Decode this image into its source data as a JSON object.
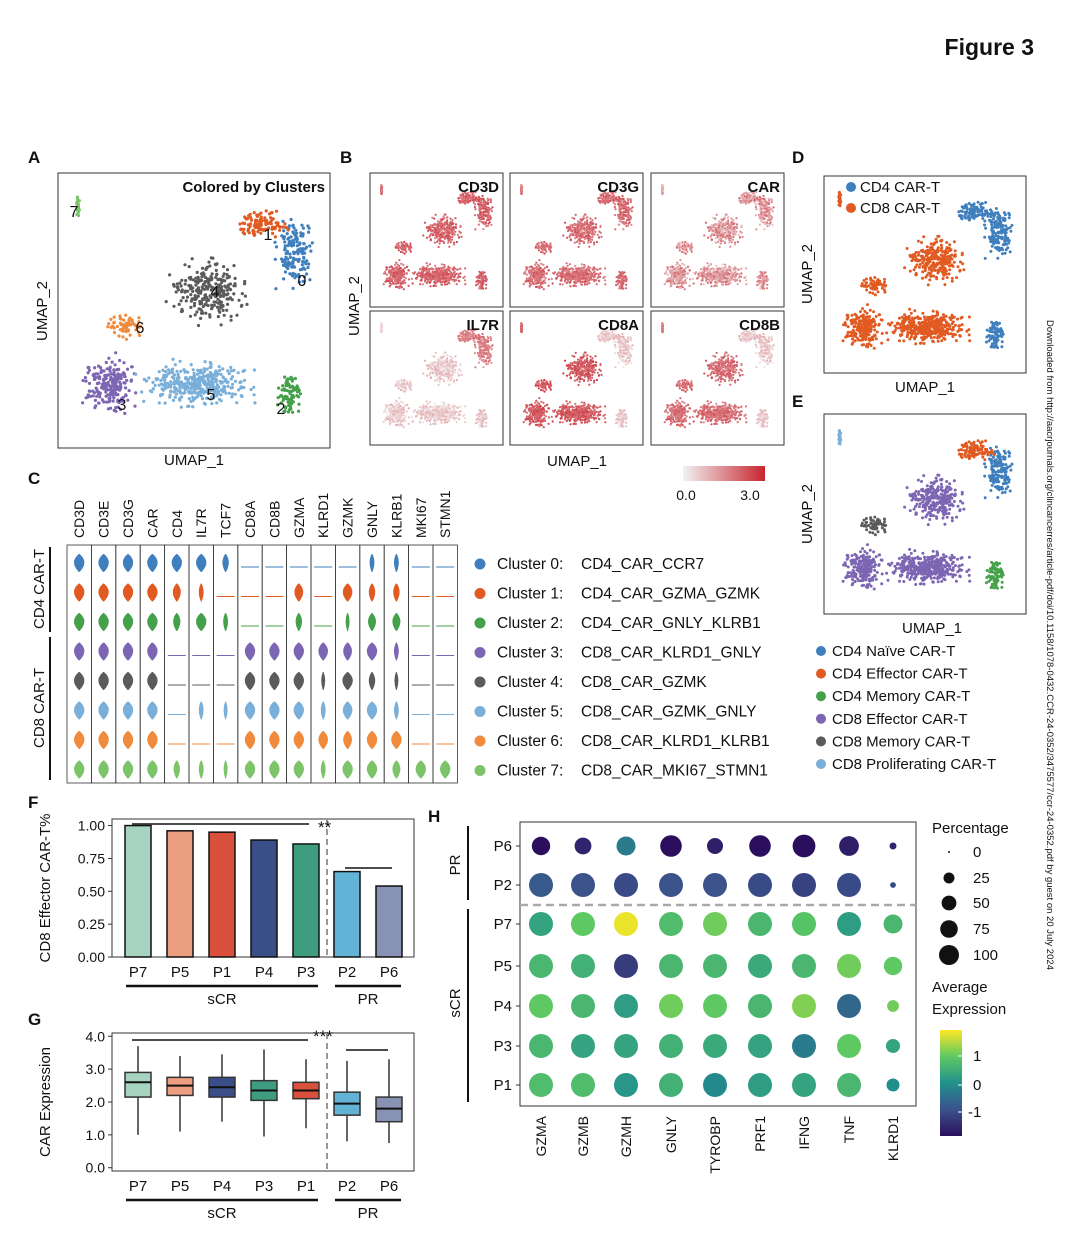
{
  "figure_title": "Figure 3",
  "side_note": "Downloaded from http://aacrjournals.org/clincancerres/article-pdf/doi/10.1158/1078-0432.CCR-24-0352/3475577/ccr-24-0352.pdf by guest on 20 July 2024",
  "colors": {
    "c0": "#3f7fbd",
    "c1": "#e05a22",
    "c2": "#45a04a",
    "c3": "#7c66b3",
    "c4": "#5b5b5b",
    "c5": "#79afd9",
    "c6": "#f08a3c",
    "c7": "#7cc36a",
    "red": "#c8252f"
  },
  "panels": {
    "A": {
      "letter": "A",
      "title": "Colored by Clusters",
      "xlabel": "UMAP_1",
      "ylabel": "UMAP_2",
      "cluster_labels": [
        "0",
        "1",
        "2",
        "3",
        "4",
        "5",
        "6",
        "7"
      ]
    },
    "B": {
      "letter": "B",
      "genes": [
        "CD3D",
        "CD3G",
        "CAR",
        "IL7R",
        "CD8A",
        "CD8B"
      ],
      "xlabel": "UMAP_1",
      "ylabel": "UMAP_2",
      "scale_min": "0.0",
      "scale_max": "3.0"
    },
    "C": {
      "letter": "C",
      "genes": [
        "CD3D",
        "CD3E",
        "CD3G",
        "CAR",
        "CD4",
        "IL7R",
        "TCF7",
        "CD8A",
        "CD8B",
        "GZMA",
        "KLRD1",
        "GZMK",
        "GNLY",
        "KLRB1",
        "MKI67",
        "STMN1"
      ],
      "group_cd4": "CD4 CAR-T",
      "group_cd8": "CD8 CAR-T",
      "legend": [
        {
          "id": "Cluster 0:",
          "name": "CD4_CAR_CCR7"
        },
        {
          "id": "Cluster 1:",
          "name": "CD4_CAR_GZMA_GZMK"
        },
        {
          "id": "Cluster 2:",
          "name": "CD4_CAR_GNLY_KLRB1"
        },
        {
          "id": "Cluster 3:",
          "name": "CD8_CAR_KLRD1_GNLY"
        },
        {
          "id": "Cluster 4:",
          "name": "CD8_CAR_GZMK"
        },
        {
          "id": "Cluster 5:",
          "name": "CD8_CAR_GZMK_GNLY"
        },
        {
          "id": "Cluster 6:",
          "name": "CD8_CAR_KLRD1_KLRB1"
        },
        {
          "id": "Cluster 7:",
          "name": "CD8_CAR_MKI67_STMN1"
        }
      ]
    },
    "D": {
      "letter": "D",
      "legend": [
        "CD4 CAR-T",
        "CD8 CAR-T"
      ],
      "xlabel": "UMAP_1",
      "ylabel": "UMAP_2"
    },
    "E": {
      "letter": "E",
      "xlabel": "UMAP_1",
      "ylabel": "UMAP_2",
      "legend": [
        "CD4 Naïve CAR-T",
        "CD4 Effector CAR-T",
        "CD4 Memory CAR-T",
        "CD8 Effector CAR-T",
        "CD8 Memory CAR-T",
        "CD8 Proliferating CAR-T"
      ]
    },
    "F": {
      "letter": "F",
      "group_scr": "sCR",
      "group_pr": "PR",
      "sig1": "**"
    },
    "G": {
      "letter": "G",
      "group_scr": "sCR",
      "group_pr": "PR",
      "sig1": "***"
    },
    "H": {
      "letter": "H",
      "group_pr": "PR",
      "group_scr": "sCR",
      "size_title": "Percentage",
      "color_title_1": "Average",
      "color_title_2": "Expression",
      "size_levels": [
        "0",
        "25",
        "50",
        "75",
        "100"
      ],
      "color_ticks": [
        "1",
        "0",
        "-1"
      ]
    }
  },
  "chart_data": [
    {
      "panel": "F",
      "type": "bar",
      "ylabel": "CD8 Effector CAR-T%",
      "categories": [
        "P7",
        "P5",
        "P1",
        "P4",
        "P3",
        "P2",
        "P6"
      ],
      "values": [
        1.0,
        0.96,
        0.95,
        0.89,
        0.86,
        0.65,
        0.54
      ],
      "colors": [
        "#a6d4c1",
        "#ec9e80",
        "#d9513c",
        "#3a4f87",
        "#3e9c7f",
        "#63b3d6",
        "#8892b5"
      ],
      "yticks": [
        "0.00",
        "0.25",
        "0.50",
        "0.75",
        "1.00"
      ],
      "ylim": [
        0,
        1.05
      ]
    },
    {
      "panel": "G",
      "type": "box",
      "ylabel": "CAR Expression",
      "categories": [
        "P7",
        "P5",
        "P4",
        "P3",
        "P1",
        "P2",
        "P6"
      ],
      "boxes": [
        {
          "min": 1.0,
          "q1": 2.15,
          "median": 2.6,
          "q3": 2.9,
          "max": 3.7
        },
        {
          "min": 1.1,
          "q1": 2.2,
          "median": 2.5,
          "q3": 2.75,
          "max": 3.4
        },
        {
          "min": 1.4,
          "q1": 2.15,
          "median": 2.45,
          "q3": 2.75,
          "max": 3.45
        },
        {
          "min": 0.95,
          "q1": 2.05,
          "median": 2.35,
          "q3": 2.65,
          "max": 3.6
        },
        {
          "min": 1.2,
          "q1": 2.1,
          "median": 2.35,
          "q3": 2.6,
          "max": 3.3
        },
        {
          "min": 0.8,
          "q1": 1.6,
          "median": 1.95,
          "q3": 2.3,
          "max": 3.25
        },
        {
          "min": 0.75,
          "q1": 1.4,
          "median": 1.8,
          "q3": 2.15,
          "max": 3.3
        }
      ],
      "colors": [
        "#a6d4c1",
        "#ec9e80",
        "#3a4f87",
        "#3e9c7f",
        "#d9513c",
        "#63b3d6",
        "#8892b5"
      ],
      "yticks": [
        "0.0",
        "1.0",
        "2.0",
        "3.0",
        "4.0"
      ],
      "ylim": [
        -0.1,
        4.1
      ]
    },
    {
      "panel": "H",
      "type": "dot",
      "genes": [
        "GZMA",
        "GZMB",
        "GZMH",
        "GNLY",
        "TYROBP",
        "PRF1",
        "IFNG",
        "TNF",
        "KLRD1"
      ],
      "rows": [
        "P6",
        "P2",
        "P7",
        "P5",
        "P4",
        "P3",
        "P1"
      ],
      "percentage": [
        [
          55,
          45,
          60,
          80,
          40,
          80,
          90,
          65,
          5
        ],
        [
          100,
          100,
          100,
          100,
          100,
          100,
          100,
          100,
          3
        ],
        [
          100,
          100,
          100,
          100,
          100,
          100,
          100,
          100,
          60
        ],
        [
          100,
          100,
          100,
          100,
          100,
          100,
          100,
          100,
          55
        ],
        [
          100,
          100,
          100,
          100,
          100,
          100,
          100,
          100,
          20
        ],
        [
          100,
          100,
          100,
          100,
          100,
          100,
          100,
          100,
          30
        ],
        [
          100,
          100,
          100,
          100,
          100,
          100,
          100,
          100,
          25
        ]
      ],
      "expression": [
        [
          -1.8,
          -1.5,
          -0.3,
          -2.0,
          -1.6,
          -2.0,
          -2.1,
          -1.6,
          -1.5
        ],
        [
          -0.8,
          -0.9,
          -1.0,
          -0.9,
          -0.9,
          -1.0,
          -1.1,
          -1.0,
          -1.0
        ],
        [
          0.3,
          0.9,
          1.7,
          0.7,
          1.0,
          0.6,
          0.8,
          0.2,
          0.6
        ],
        [
          0.6,
          0.5,
          -1.2,
          0.6,
          0.6,
          0.4,
          0.6,
          1.0,
          0.9
        ],
        [
          0.9,
          0.6,
          0.2,
          1.0,
          0.9,
          0.6,
          1.1,
          -0.6,
          1.0
        ],
        [
          0.6,
          0.3,
          0.3,
          0.5,
          0.4,
          0.3,
          -0.3,
          0.9,
          0.3
        ],
        [
          0.7,
          0.7,
          0.1,
          0.5,
          -0.1,
          0.2,
          0.3,
          0.6,
          0.0
        ]
      ],
      "color_range": [
        -1.8,
        1.8
      ]
    }
  ]
}
